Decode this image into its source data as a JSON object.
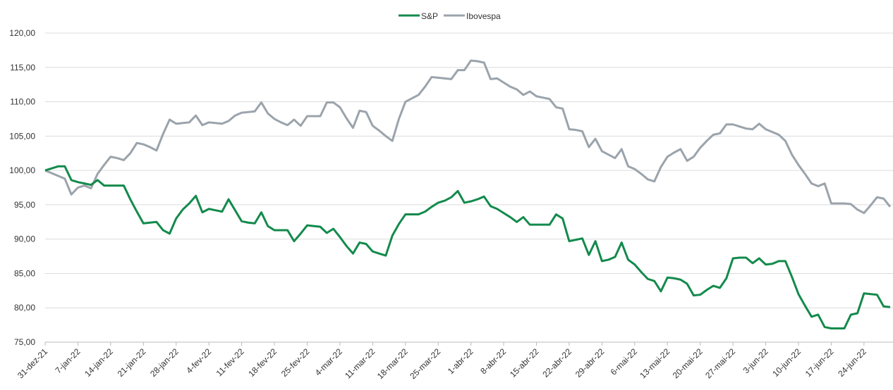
{
  "chart_data": {
    "type": "line",
    "categories": [
      "31-dez-21",
      null,
      null,
      null,
      null,
      "7-jan-22",
      null,
      null,
      null,
      null,
      "14-jan-22",
      null,
      null,
      null,
      null,
      "21-jan-22",
      null,
      null,
      null,
      null,
      "28-jan-22",
      null,
      null,
      null,
      null,
      "4-fev-22",
      null,
      null,
      null,
      null,
      "11-fev-22",
      null,
      null,
      null,
      null,
      "18-fev-22",
      null,
      null,
      null,
      null,
      "25-fev-22",
      null,
      null,
      null,
      null,
      "4-mar-22",
      null,
      null,
      null,
      null,
      "11-mar-22",
      null,
      null,
      null,
      null,
      "18-mar-22",
      null,
      null,
      null,
      null,
      "25-mar-22",
      null,
      null,
      null,
      null,
      "1-abr-22",
      null,
      null,
      null,
      null,
      "8-abr-22",
      null,
      null,
      null,
      null,
      "15-abr-22",
      null,
      null,
      null,
      null,
      "22-abr-22",
      null,
      null,
      null,
      null,
      "29-abr-22",
      null,
      null,
      null,
      null,
      "6-mai-22",
      null,
      null,
      null,
      null,
      "13-mai-22",
      null,
      null,
      null,
      null,
      "20-mai-22",
      null,
      null,
      null,
      null,
      "27-mai-22",
      null,
      null,
      null,
      null,
      "3-jun-22",
      null,
      null,
      null,
      null,
      "10-jun-22",
      null,
      null,
      null,
      null,
      "17-jun-22",
      null,
      null,
      null,
      null,
      "24-jun-22",
      null,
      null,
      null,
      null
    ],
    "series": [
      {
        "name": "S&P",
        "color": "#138a4c",
        "values": [
          100,
          100.3,
          100.6,
          100.6,
          98.6,
          98.3,
          98.1,
          97.9,
          98.6,
          97.8,
          97.8,
          97.8,
          97.8,
          95.8,
          94,
          92.3,
          92.4,
          92.5,
          91.3,
          90.8,
          93,
          94.3,
          95.2,
          96.3,
          93.9,
          94.4,
          94.2,
          94,
          95.8,
          94.2,
          92.6,
          92.4,
          92.3,
          93.9,
          91.9,
          91.3,
          91.3,
          91.3,
          89.7,
          90.8,
          92,
          91.9,
          91.8,
          90.9,
          91.5,
          90.3,
          89,
          87.9,
          89.5,
          89.3,
          88.2,
          87.9,
          87.6,
          90.5,
          92.2,
          93.6,
          93.6,
          93.6,
          94,
          94.7,
          95.3,
          95.6,
          96.1,
          97,
          95.3,
          95.5,
          95.8,
          96.2,
          94.8,
          94.4,
          93.8,
          93.2,
          92.5,
          93.2,
          92.1,
          92.1,
          92.1,
          92.1,
          93.6,
          93,
          89.7,
          89.9,
          90.1,
          87.7,
          89.7,
          86.8,
          87,
          87.4,
          89.5,
          87,
          86.3,
          85.2,
          84.2,
          83.9,
          82.4,
          84.4,
          84.3,
          84.1,
          83.5,
          81.8,
          81.9,
          82.6,
          83.2,
          82.9,
          84.3,
          87.2,
          87.3,
          87.3,
          86.5,
          87.2,
          86.3,
          86.4,
          86.8,
          86.8,
          84.5,
          82,
          80.3,
          78.7,
          79,
          77.2,
          77,
          77,
          77,
          79,
          79.2,
          82.1,
          82,
          81.9,
          80.2,
          80.1
        ]
      },
      {
        "name": "Ibovespa",
        "color": "#9ba3ab",
        "values": [
          100,
          99.6,
          99.2,
          98.8,
          96.5,
          97.5,
          97.8,
          97.4,
          99.5,
          100.8,
          102,
          101.8,
          101.5,
          102.5,
          104,
          103.8,
          103.4,
          102.9,
          105.3,
          107.4,
          106.8,
          106.9,
          107,
          108,
          106.6,
          107,
          106.9,
          106.8,
          107.2,
          108,
          108.4,
          108.5,
          108.6,
          109.9,
          108.3,
          107.5,
          107,
          106.6,
          107.4,
          106.5,
          107.9,
          107.9,
          107.9,
          109.9,
          109.9,
          109.2,
          107.6,
          106.2,
          108.7,
          108.5,
          106.5,
          105.8,
          105,
          104.3,
          107.5,
          110,
          110.5,
          111,
          112.2,
          113.6,
          113.5,
          113.4,
          113.3,
          114.6,
          114.6,
          116,
          115.9,
          115.7,
          113.3,
          113.4,
          112.8,
          112.2,
          111.8,
          111,
          111.5,
          110.8,
          110.6,
          110.4,
          109.2,
          109,
          106,
          105.9,
          105.7,
          103.4,
          104.6,
          102.8,
          102.3,
          101.8,
          103.1,
          100.6,
          100.2,
          99.5,
          98.7,
          98.4,
          100.5,
          102,
          102.6,
          103.1,
          101.4,
          102,
          103.3,
          104.3,
          105.2,
          105.4,
          106.7,
          106.7,
          106.4,
          106.1,
          106,
          106.8,
          106,
          105.6,
          105.2,
          104.3,
          102.3,
          100.8,
          99.5,
          98.1,
          97.7,
          98.1,
          95.2,
          95.2,
          95.2,
          95.1,
          94.3,
          93.8,
          94.9,
          96.1,
          95.9,
          94.7
        ]
      }
    ],
    "ylim": [
      75,
      120
    ],
    "yticks": [
      {
        "value": 75,
        "label": "75,00"
      },
      {
        "value": 80,
        "label": "80,00"
      },
      {
        "value": 85,
        "label": "85,00"
      },
      {
        "value": 90,
        "label": "90,00"
      },
      {
        "value": 95,
        "label": "95,00"
      },
      {
        "value": 100,
        "label": "100,00"
      },
      {
        "value": 105,
        "label": "105,00"
      },
      {
        "value": 110,
        "label": "110,00"
      },
      {
        "value": 115,
        "label": "115,00"
      },
      {
        "value": 120,
        "label": "120,00"
      }
    ],
    "grid": true,
    "legend": "top"
  }
}
